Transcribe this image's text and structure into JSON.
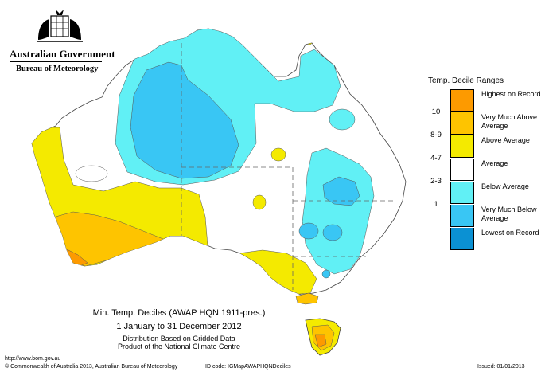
{
  "header": {
    "title": "Australian Government",
    "subtitle": "Bureau of Meteorology"
  },
  "legend": {
    "title": "Temp. Decile Ranges",
    "items": [
      {
        "decile": "",
        "label": "Highest on Record",
        "color": "#fd9a00"
      },
      {
        "decile": "10",
        "label": "Very Much Above Average",
        "color": "#fec400"
      },
      {
        "decile": "8-9",
        "label": "Above Average",
        "color": "#f4ea00"
      },
      {
        "decile": "4-7",
        "label": "Average",
        "color": "#ffffff"
      },
      {
        "decile": "2-3",
        "label": "Below Average",
        "color": "#61f0f5"
      },
      {
        "decile": "1",
        "label": "Very Much Below Average",
        "color": "#39c6f4"
      },
      {
        "decile": "",
        "label": "Lowest on Record",
        "color": "#0b91d3"
      }
    ]
  },
  "caption": {
    "line1": "Min. Temp. Deciles (AWAP HQN 1911-pres.)",
    "line2": "1 January to 31 December 2012",
    "line3": "Distribution Based on Gridded Data",
    "line4": "Product of the National Climate Centre"
  },
  "footer": {
    "url": "http://www.bom.gov.au",
    "copyright": "© Commonwealth of Australia 2013, Australian Bureau of Meteorology",
    "id_code": "ID code: IGMapAWAPHQNDeciles",
    "issued": "Issued: 01/01/2013"
  }
}
